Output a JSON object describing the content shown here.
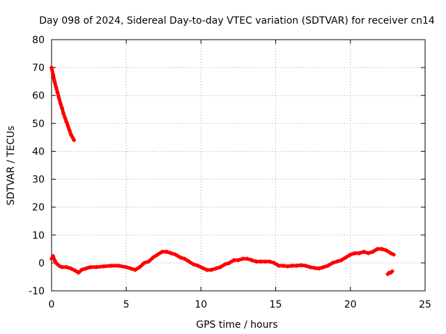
{
  "chart_data": {
    "type": "scatter",
    "title": "Day 098 of 2024, Sidereal Day-to-day VTEC variation (SDTVAR) for receiver cn14",
    "xlabel": "GPS time / hours",
    "ylabel": "SDTVAR / TECUs",
    "xlim": [
      0,
      25
    ],
    "ylim": [
      -10,
      80
    ],
    "xticks": [
      0,
      5,
      10,
      15,
      20,
      25
    ],
    "yticks": [
      -10,
      0,
      10,
      20,
      30,
      40,
      50,
      60,
      70,
      80
    ],
    "grid": true,
    "legend": "none",
    "series": [
      {
        "name": "SDTVAR",
        "color": "#ff0000",
        "marker": "plus",
        "segments": [
          {
            "x": [
              0.0,
              0.1,
              0.2,
              0.3,
              0.4,
              0.5,
              0.6,
              0.7,
              0.8,
              0.9,
              1.0,
              1.1,
              1.2,
              1.3,
              1.4,
              1.5
            ],
            "y": [
              70.0,
              67.5,
              65.0,
              63.0,
              61.0,
              59.0,
              57.0,
              55.5,
              53.5,
              52.0,
              50.5,
              49.0,
              47.5,
              46.0,
              45.0,
              44.0
            ]
          },
          {
            "x": [
              0.0,
              0.1,
              0.2,
              0.3,
              0.4,
              0.5,
              0.7,
              1.0,
              1.3,
              1.6,
              1.8,
              2.0,
              2.3,
              2.6,
              3.0,
              3.5,
              4.0,
              4.5,
              5.0,
              5.3,
              5.6,
              5.9,
              6.2,
              6.5,
              6.8,
              7.1,
              7.4,
              7.7,
              8.0,
              8.3,
              8.6,
              8.9,
              9.2,
              9.5,
              9.8,
              10.1,
              10.4,
              10.7,
              11.0,
              11.3,
              11.6,
              11.9,
              12.2,
              12.5,
              12.8,
              13.1,
              13.4,
              13.7,
              14.0,
              14.3,
              14.6,
              14.9,
              15.2,
              15.5,
              15.8,
              16.1,
              16.4,
              16.7,
              17.0,
              17.3,
              17.6,
              17.9,
              18.2,
              18.5,
              18.8,
              19.1,
              19.4,
              19.7,
              20.0,
              20.3,
              20.6,
              20.9,
              21.2,
              21.5,
              21.8,
              22.1,
              22.4,
              22.7,
              22.9
            ],
            "y": [
              1.5,
              2.5,
              1.0,
              0.0,
              -0.5,
              -1.0,
              -1.5,
              -1.5,
              -2.0,
              -2.8,
              -3.5,
              -2.5,
              -2.0,
              -1.5,
              -1.5,
              -1.2,
              -1.0,
              -1.0,
              -1.5,
              -2.0,
              -2.5,
              -1.5,
              0.0,
              0.5,
              2.0,
              3.0,
              4.0,
              4.0,
              3.5,
              3.0,
              2.0,
              1.5,
              0.5,
              -0.5,
              -1.0,
              -1.8,
              -2.5,
              -2.5,
              -2.0,
              -1.5,
              -0.5,
              0.0,
              1.0,
              1.0,
              1.5,
              1.5,
              1.0,
              0.5,
              0.5,
              0.5,
              0.5,
              0.0,
              -1.0,
              -1.0,
              -1.2,
              -1.0,
              -1.0,
              -0.8,
              -1.0,
              -1.5,
              -1.8,
              -2.0,
              -1.5,
              -1.0,
              0.0,
              0.5,
              1.0,
              2.0,
              3.0,
              3.5,
              3.5,
              4.0,
              3.5,
              4.0,
              5.0,
              5.0,
              4.5,
              3.5,
              3.0
            ]
          },
          {
            "x": [
              22.5,
              22.6,
              22.7,
              22.8
            ],
            "y": [
              -4.0,
              -3.5,
              -3.5,
              -3.0
            ]
          }
        ]
      }
    ]
  }
}
